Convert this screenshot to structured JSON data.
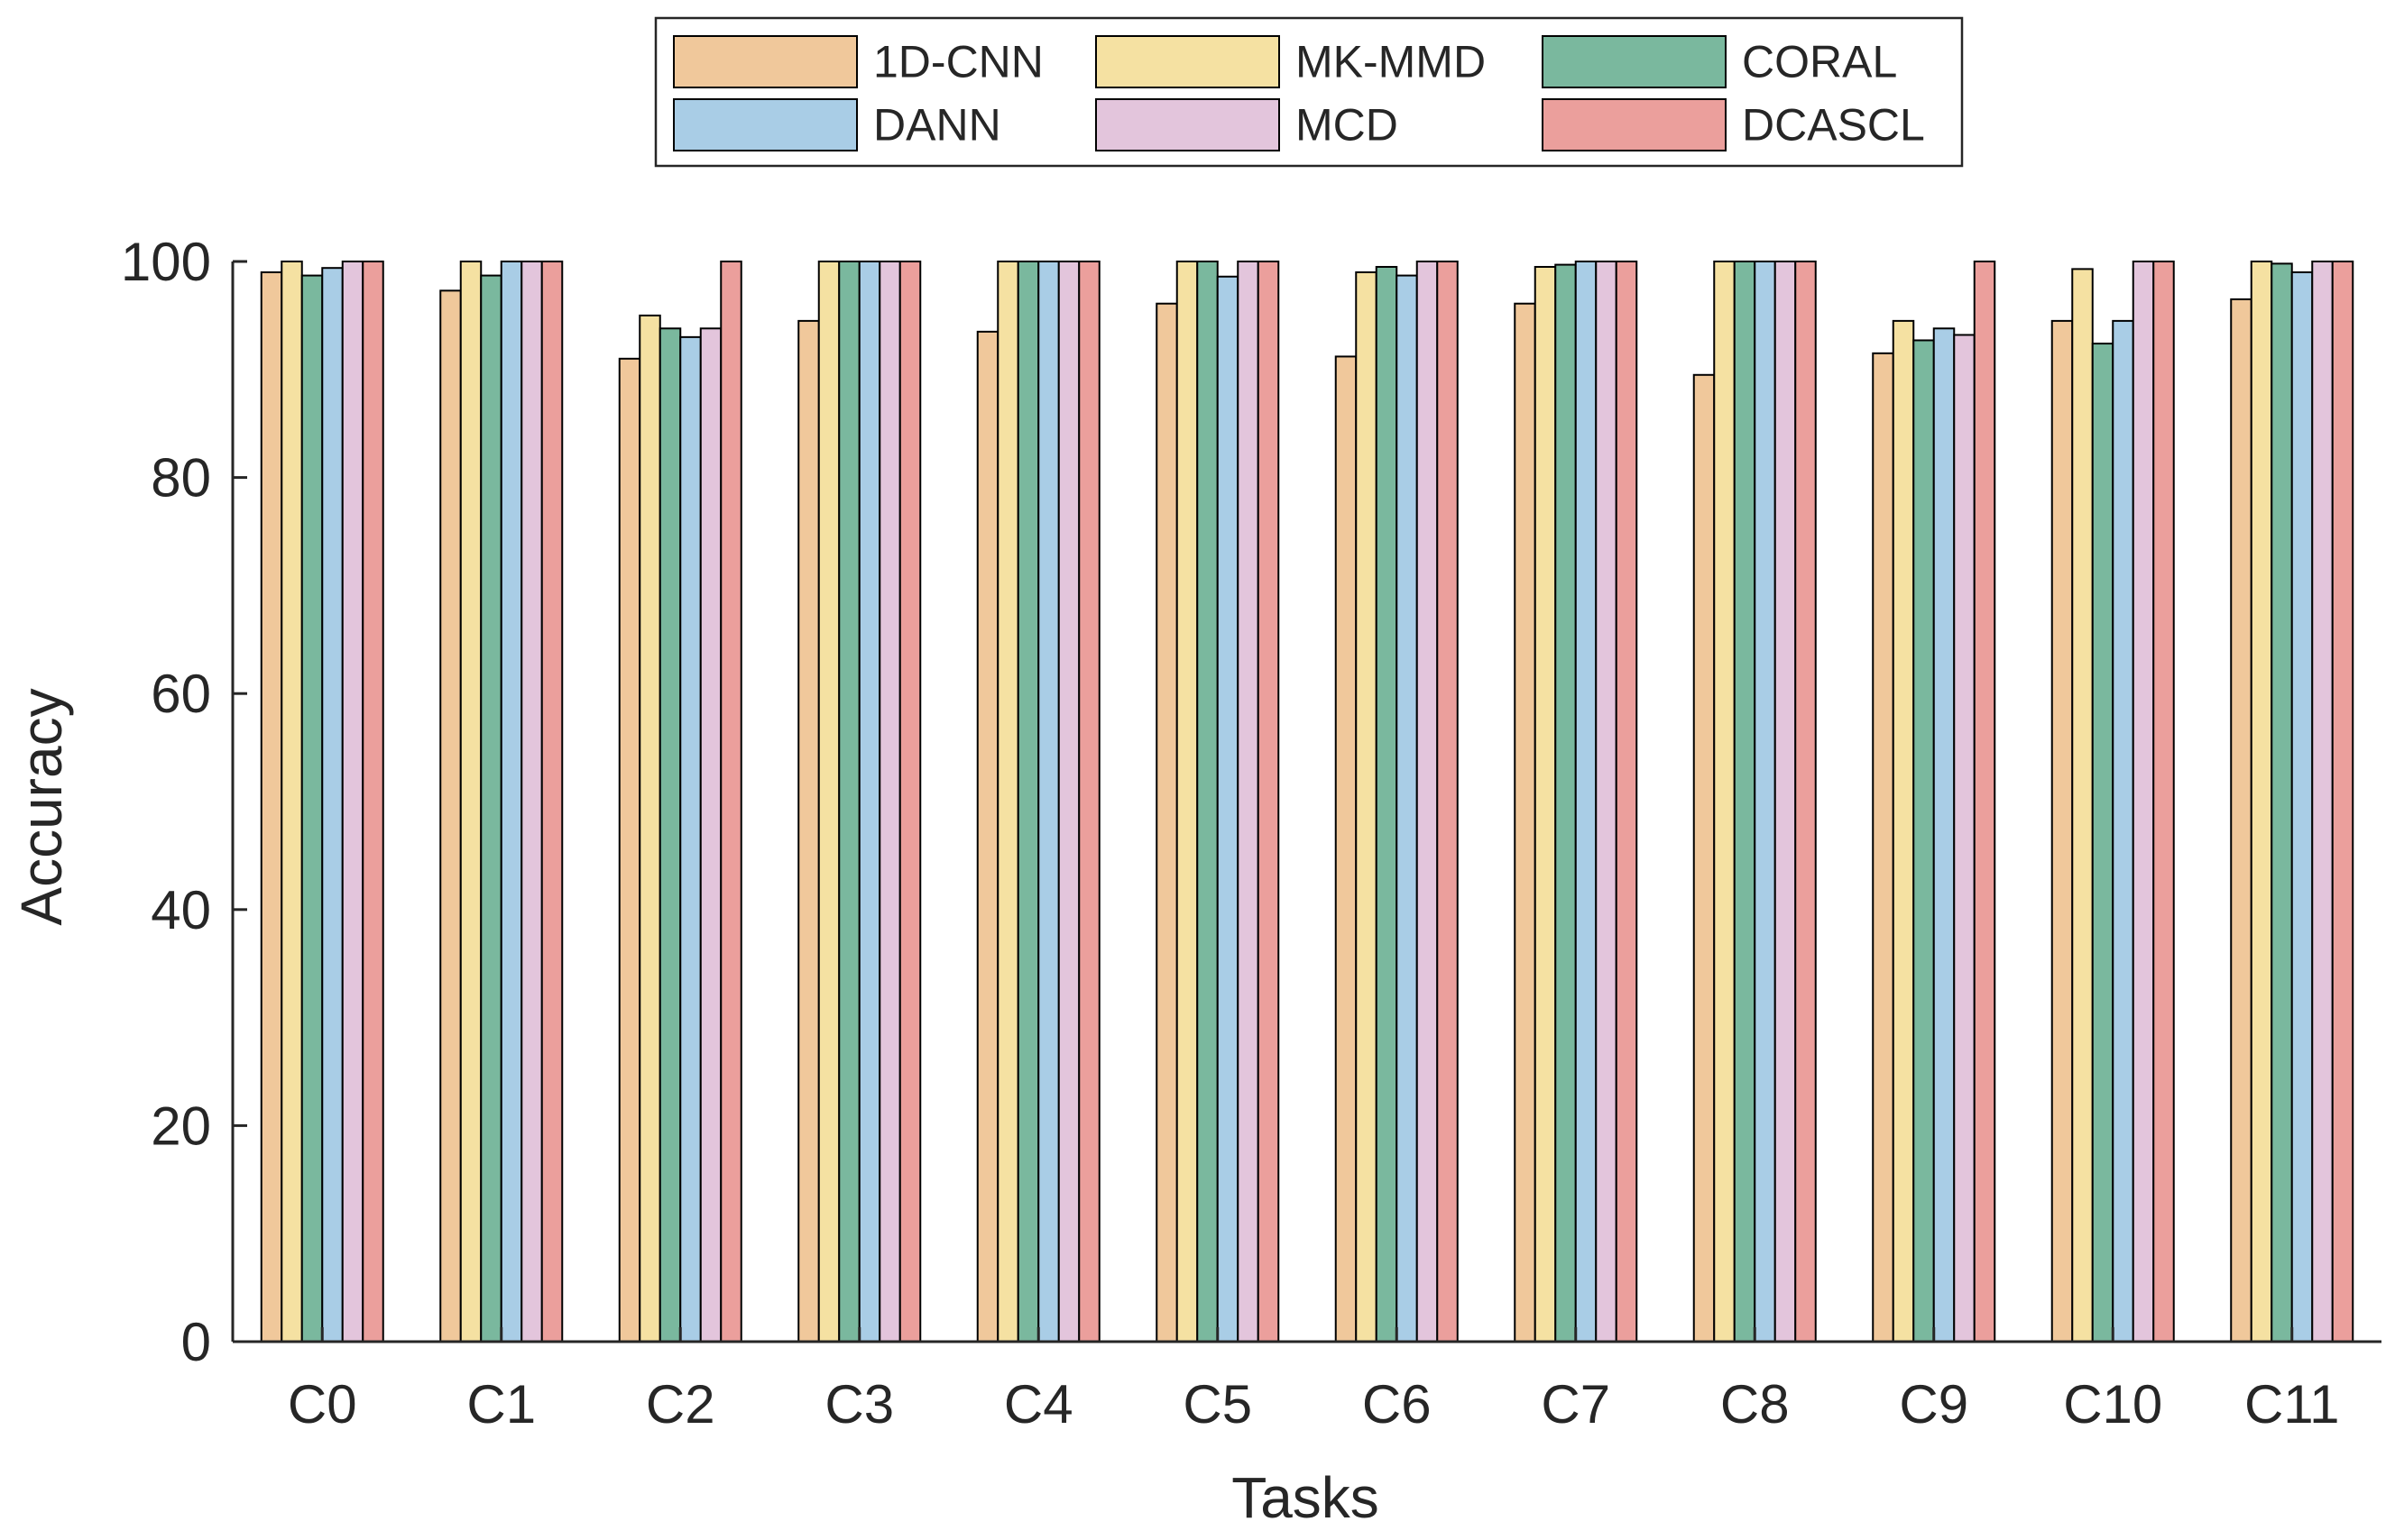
{
  "chart_data": {
    "type": "bar",
    "title": "",
    "xlabel": "Tasks",
    "ylabel": "Accuracy",
    "ylim": [
      0,
      100
    ],
    "yticks": [
      0,
      20,
      40,
      60,
      80,
      100
    ],
    "grid": false,
    "legend_position": "top",
    "categories": [
      "C0",
      "C1",
      "C2",
      "C3",
      "C4",
      "C5",
      "C6",
      "C7",
      "C8",
      "C9",
      "C10",
      "C11"
    ],
    "series": [
      {
        "name": "1D-CNN",
        "color": "#f0c89b",
        "values": [
          99,
          97.3,
          91,
          94.5,
          93.5,
          96.1,
          91.2,
          96.1,
          89.5,
          91.5,
          94.5,
          96.5
        ]
      },
      {
        "name": "MK-MMD",
        "color": "#f5e1a2",
        "values": [
          100,
          100,
          95,
          100,
          100,
          100,
          99,
          99.5,
          100,
          94.5,
          99.3,
          100
        ]
      },
      {
        "name": "CORAL",
        "color": "#7ab89e",
        "values": [
          98.7,
          98.7,
          93.8,
          100,
          100,
          100,
          99.5,
          99.7,
          100,
          92.7,
          92.4,
          99.8
        ]
      },
      {
        "name": "DANN",
        "color": "#a9cde6",
        "values": [
          99.4,
          100,
          93,
          100,
          100,
          98.6,
          98.7,
          100,
          100,
          93.8,
          94.5,
          99
        ]
      },
      {
        "name": "MCD",
        "color": "#e3c5dc",
        "values": [
          100,
          100,
          93.8,
          100,
          100,
          100,
          100,
          100,
          100,
          93.2,
          100,
          100
        ]
      },
      {
        "name": "DCASCL",
        "color": "#eb9f9c",
        "values": [
          100,
          100,
          100,
          100,
          100,
          100,
          100,
          100,
          100,
          100,
          100,
          100
        ]
      }
    ]
  }
}
